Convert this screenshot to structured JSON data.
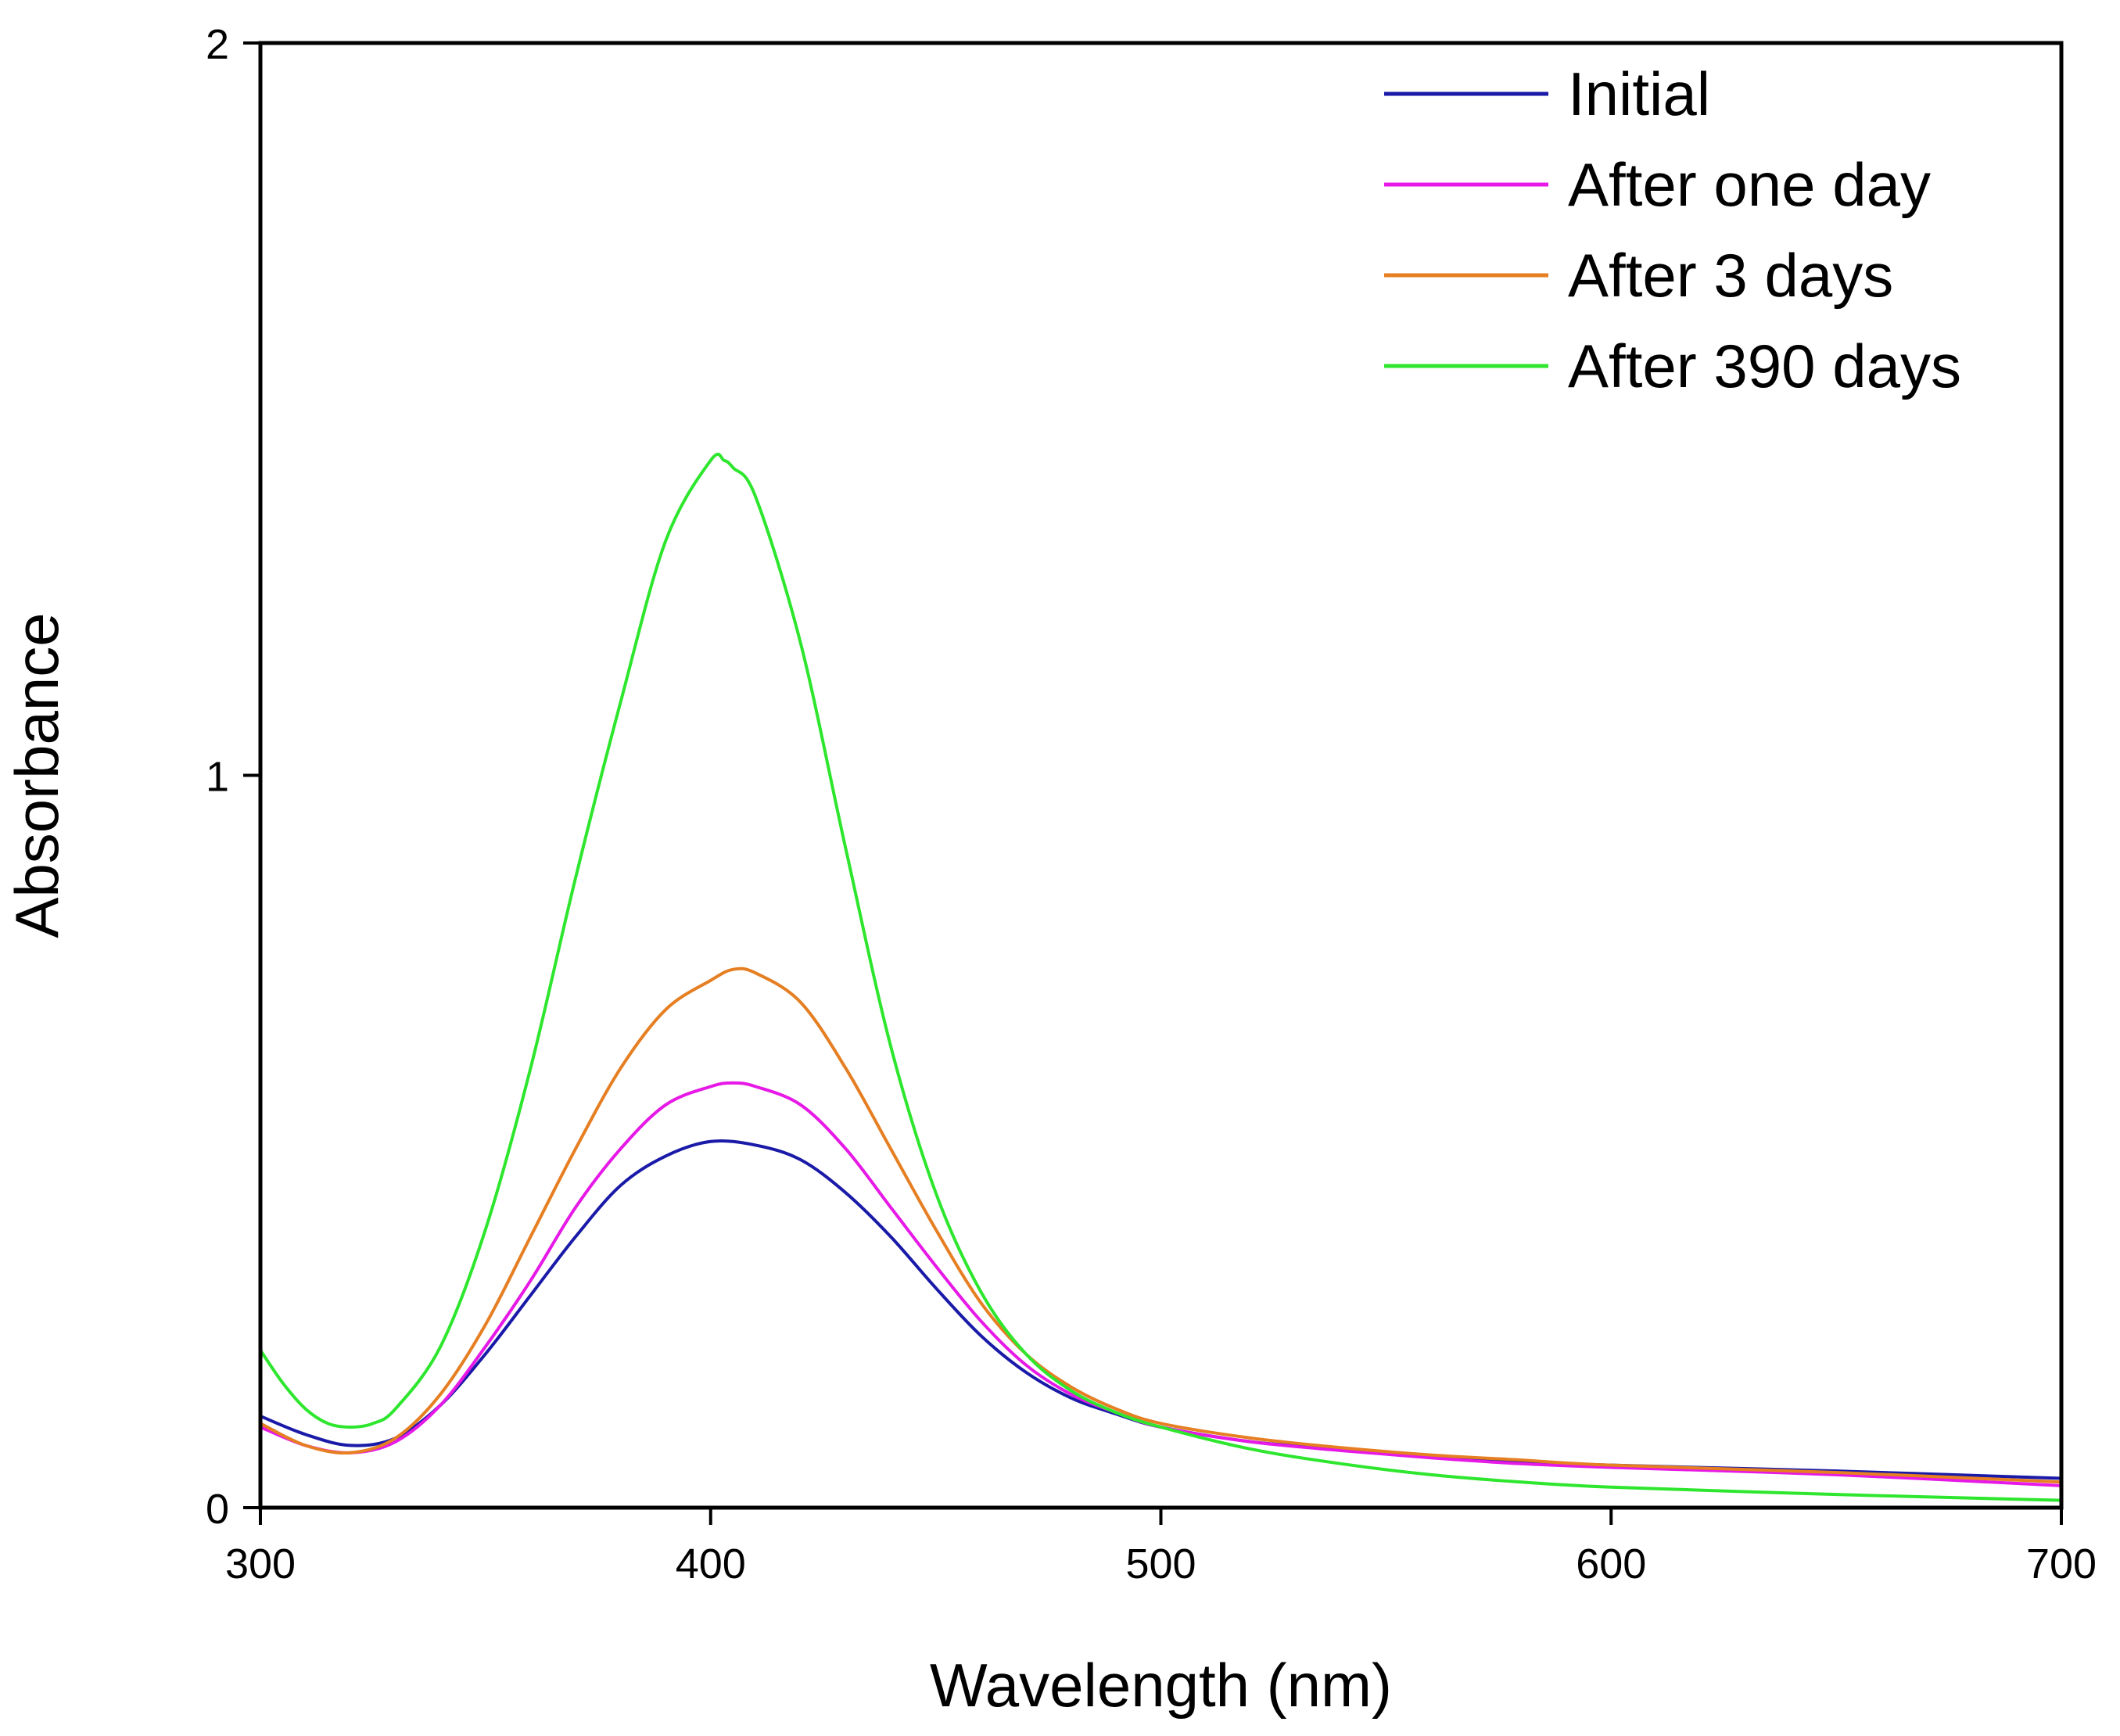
{
  "chart_data": {
    "type": "line",
    "title": "",
    "xlabel": "Wavelength (nm)",
    "ylabel": "Absorbance",
    "xlim": [
      300,
      700
    ],
    "ylim": [
      0,
      2
    ],
    "xticks": [
      300,
      400,
      500,
      600,
      700
    ],
    "yticks": [
      0,
      1,
      2
    ],
    "grid": false,
    "legend_position": "top-right",
    "series": [
      {
        "name": "Initial",
        "color": "#1a1aa8",
        "x": [
          300,
          310,
          320,
          330,
          340,
          350,
          360,
          370,
          380,
          390,
          400,
          410,
          420,
          430,
          440,
          450,
          460,
          470,
          480,
          490,
          500,
          520,
          540,
          560,
          580,
          600,
          650,
          700
        ],
        "y": [
          0.125,
          0.1,
          0.085,
          0.095,
          0.14,
          0.21,
          0.29,
          0.37,
          0.44,
          0.48,
          0.5,
          0.495,
          0.475,
          0.43,
          0.37,
          0.3,
          0.235,
          0.185,
          0.15,
          0.128,
          0.11,
          0.09,
          0.08,
          0.07,
          0.063,
          0.058,
          0.05,
          0.04
        ]
      },
      {
        "name": "After one day",
        "color": "#e619e6",
        "x": [
          300,
          310,
          320,
          330,
          340,
          350,
          360,
          370,
          380,
          390,
          400,
          405,
          410,
          420,
          430,
          440,
          450,
          460,
          470,
          480,
          490,
          500,
          520,
          540,
          560,
          580,
          600,
          650,
          700
        ],
        "y": [
          0.11,
          0.085,
          0.075,
          0.09,
          0.14,
          0.22,
          0.31,
          0.41,
          0.49,
          0.55,
          0.575,
          0.58,
          0.575,
          0.55,
          0.49,
          0.41,
          0.33,
          0.255,
          0.195,
          0.155,
          0.13,
          0.11,
          0.09,
          0.078,
          0.068,
          0.06,
          0.055,
          0.045,
          0.03
        ]
      },
      {
        "name": "After 3 days",
        "color": "#e67e22",
        "x": [
          300,
          310,
          320,
          330,
          340,
          350,
          360,
          370,
          380,
          390,
          400,
          405,
          410,
          420,
          430,
          440,
          450,
          460,
          470,
          480,
          490,
          500,
          520,
          540,
          560,
          580,
          600,
          650,
          700
        ],
        "y": [
          0.115,
          0.085,
          0.075,
          0.095,
          0.155,
          0.25,
          0.37,
          0.49,
          0.6,
          0.68,
          0.72,
          0.735,
          0.73,
          0.69,
          0.6,
          0.49,
          0.38,
          0.28,
          0.21,
          0.165,
          0.135,
          0.115,
          0.095,
          0.082,
          0.072,
          0.065,
          0.058,
          0.048,
          0.035
        ]
      },
      {
        "name": "After 390 days",
        "color": "#2ee62e",
        "x": [
          300,
          305,
          310,
          315,
          320,
          325,
          330,
          340,
          350,
          360,
          370,
          380,
          390,
          400,
          403,
          405,
          410,
          420,
          430,
          440,
          450,
          460,
          470,
          480,
          490,
          500,
          520,
          540,
          560,
          580,
          600,
          650,
          700
        ],
        "y": [
          0.215,
          0.17,
          0.135,
          0.115,
          0.11,
          0.115,
          0.135,
          0.22,
          0.38,
          0.6,
          0.86,
          1.1,
          1.32,
          1.43,
          1.43,
          1.42,
          1.38,
          1.18,
          0.9,
          0.63,
          0.43,
          0.295,
          0.21,
          0.16,
          0.13,
          0.11,
          0.08,
          0.06,
          0.045,
          0.035,
          0.028,
          0.018,
          0.01
        ]
      }
    ]
  }
}
